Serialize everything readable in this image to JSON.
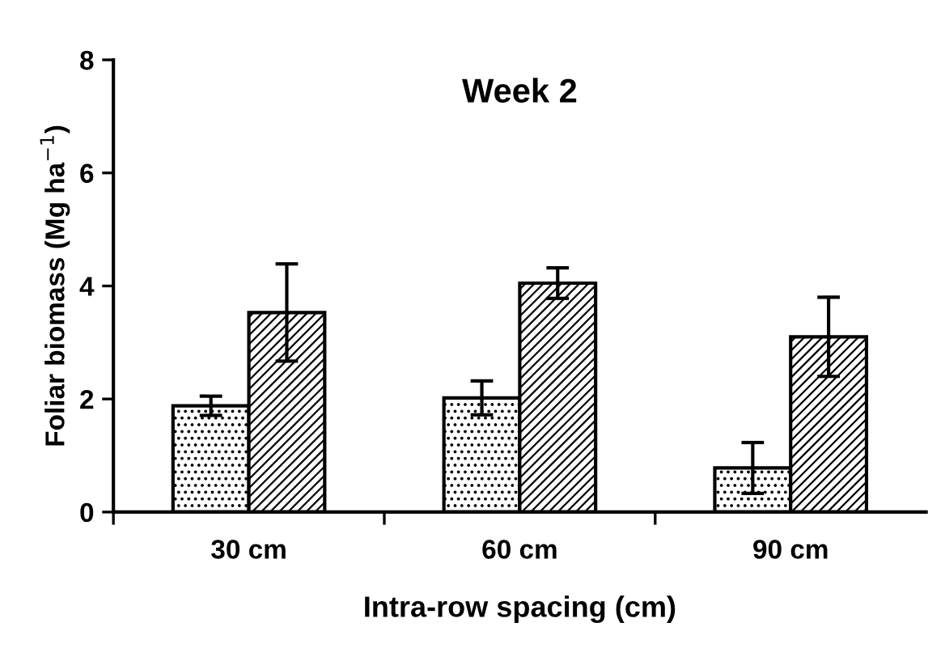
{
  "chart_data": {
    "type": "bar",
    "title": "Week 2",
    "xlabel": "Intra-row spacing (cm)",
    "ylabel": "Foliar biomass (Mg ha$^{−1}$)",
    "categories": [
      "30 cm",
      "60 cm",
      "90 cm"
    ],
    "series": [
      {
        "color": "#000000",
        "values": [
          1.88,
          2.02,
          0.78
        ],
        "errors": [
          0.17,
          0.3,
          0.45
        ]
      },
      {
        "color": "#000000",
        "values": [
          3.53,
          4.05,
          3.1
        ],
        "errors": [
          0.86,
          0.27,
          0.7
        ]
      }
    ],
    "ylim": [
      0,
      8
    ],
    "yticks": [
      0,
      2,
      4,
      6,
      8
    ],
    "grid": false,
    "legend": false
  }
}
